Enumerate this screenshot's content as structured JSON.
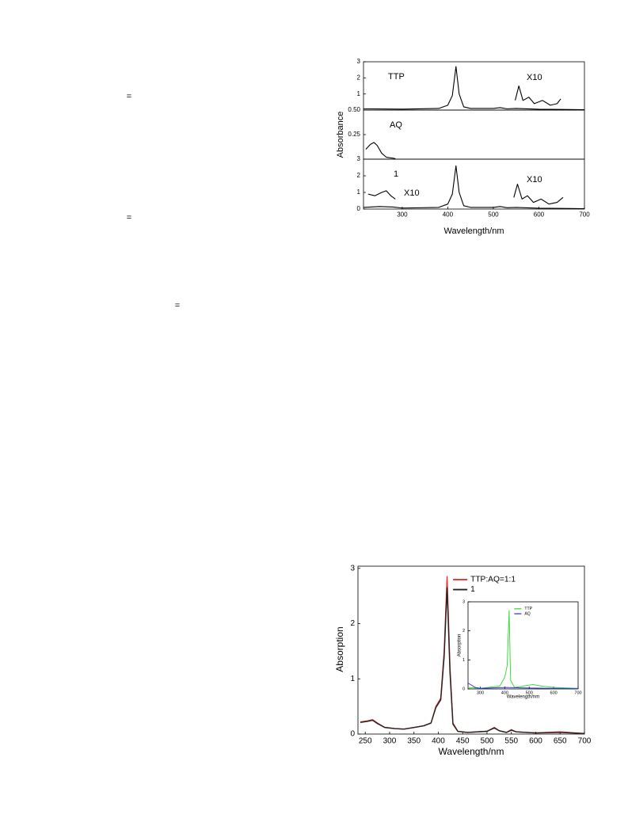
{
  "fragments": [
    "=",
    "=",
    "="
  ],
  "chart_data": [
    {
      "type": "line",
      "xlim": [
        215,
        700
      ],
      "ylim": [
        0,
        3
      ],
      "yticks": [
        1,
        2,
        3
      ],
      "annotations": [
        "TTP",
        "X10"
      ],
      "series": [
        {
          "color": "#000000",
          "x": [
            215,
            300,
            380,
            400,
            410,
            418,
            425,
            435,
            450,
            500,
            515,
            530,
            550,
            600,
            650,
            700
          ],
          "values": [
            0.08,
            0.06,
            0.1,
            0.3,
            0.9,
            2.7,
            1.0,
            0.2,
            0.1,
            0.1,
            0.15,
            0.08,
            0.1,
            0.05,
            0.04,
            0.02
          ]
        },
        {
          "color": "#000000",
          "x": [
            548,
            556,
            565,
            578,
            590,
            608,
            625,
            640,
            648
          ],
          "values": [
            0.6,
            1.5,
            0.6,
            0.8,
            0.4,
            0.6,
            0.3,
            0.4,
            0.7
          ]
        }
      ]
    },
    {
      "type": "line",
      "xlim": [
        215,
        700
      ],
      "ylim": [
        0,
        0.5
      ],
      "yticks": [
        0.25,
        {
          "value": 0.5,
          "label": "0.50"
        }
      ],
      "ylabel": "Absorbance",
      "annotations": [
        "AQ"
      ],
      "series": [
        {
          "color": "#000000",
          "x": [
            220,
            230,
            238,
            245,
            255,
            265,
            280,
            285
          ],
          "values": [
            0.1,
            0.15,
            0.17,
            0.14,
            0.06,
            0.02,
            0.01,
            0.005
          ]
        }
      ]
    },
    {
      "type": "line",
      "xlim": [
        215,
        700
      ],
      "ylim": [
        0,
        3
      ],
      "yticks": [
        0,
        1,
        2,
        3
      ],
      "xticks": [
        300,
        400,
        500,
        600,
        700
      ],
      "xlabel": "Wavelength/nm",
      "annotations": [
        "1",
        "X10",
        "X10"
      ],
      "series": [
        {
          "color": "#000000",
          "x": [
            215,
            250,
            280,
            300,
            380,
            400,
            410,
            418,
            425,
            435,
            450,
            500,
            515,
            530,
            550,
            600,
            650,
            700
          ],
          "values": [
            0.1,
            0.15,
            0.12,
            0.06,
            0.1,
            0.3,
            0.9,
            2.6,
            1.0,
            0.2,
            0.1,
            0.1,
            0.15,
            0.08,
            0.1,
            0.05,
            0.04,
            0.02
          ]
        },
        {
          "color": "#000000",
          "x": [
            225,
            240,
            255,
            265,
            275,
            285
          ],
          "values": [
            0.9,
            0.8,
            1.0,
            1.1,
            0.8,
            0.6
          ]
        },
        {
          "color": "#000000",
          "x": [
            545,
            553,
            563,
            575,
            588,
            605,
            622,
            640,
            653
          ],
          "values": [
            0.7,
            1.5,
            0.6,
            0.8,
            0.4,
            0.6,
            0.3,
            0.4,
            0.7
          ]
        }
      ]
    },
    {
      "type": "line",
      "xlim": [
        235,
        700
      ],
      "ylim": [
        0,
        3.04
      ],
      "yticks": [
        0,
        1,
        2,
        3
      ],
      "xticks": [
        250,
        300,
        350,
        400,
        450,
        500,
        550,
        600,
        650,
        700
      ],
      "xlabel": "Wavelength/nm",
      "ylabel": "Absorption",
      "legend": "upper right",
      "series": [
        {
          "name": "TTP:AQ=1:1",
          "color": "#e8302c",
          "x": [
            240,
            255,
            265,
            275,
            290,
            310,
            330,
            350,
            370,
            385,
            395,
            405,
            412,
            418,
            424,
            430,
            440,
            460,
            500,
            515,
            525,
            540,
            550,
            560,
            600,
            650,
            700
          ],
          "values": [
            0.22,
            0.24,
            0.26,
            0.2,
            0.12,
            0.1,
            0.09,
            0.12,
            0.15,
            0.2,
            0.5,
            0.65,
            1.5,
            2.85,
            1.2,
            0.2,
            0.05,
            0.03,
            0.05,
            0.12,
            0.06,
            0.03,
            0.08,
            0.04,
            0.02,
            0.04,
            0.01
          ]
        },
        {
          "name": "1",
          "color": "#222222",
          "x": [
            240,
            255,
            265,
            275,
            290,
            310,
            330,
            350,
            370,
            385,
            395,
            405,
            412,
            418,
            424,
            430,
            440,
            460,
            500,
            515,
            525,
            540,
            550,
            560,
            600,
            650,
            700
          ],
          "values": [
            0.21,
            0.23,
            0.25,
            0.19,
            0.12,
            0.1,
            0.09,
            0.12,
            0.15,
            0.2,
            0.48,
            0.62,
            1.4,
            2.65,
            1.1,
            0.18,
            0.05,
            0.03,
            0.05,
            0.11,
            0.06,
            0.03,
            0.07,
            0.04,
            0.02,
            0.03,
            0.01
          ]
        }
      ],
      "inset": {
        "type": "line",
        "xlim": [
          250,
          700
        ],
        "ylim": [
          0,
          3
        ],
        "yticks": [
          0,
          1,
          2,
          3
        ],
        "xticks": [
          300,
          400,
          500,
          600,
          700
        ],
        "xlabel": "Wavelength/nm",
        "ylabel": "Absorption",
        "legend": "upper right",
        "series": [
          {
            "name": "TTP",
            "color": "#3ddc3d",
            "x": [
              250,
              300,
              380,
              400,
              410,
              418,
              424,
              440,
              515,
              550,
              600,
              700
            ],
            "values": [
              0.05,
              0.02,
              0.1,
              0.4,
              0.8,
              2.7,
              0.3,
              0.05,
              0.15,
              0.1,
              0.05,
              0.02
            ]
          },
          {
            "name": "AQ",
            "color": "#3a3adc",
            "x": [
              250,
              260,
              280,
              300,
              400,
              500,
              700
            ],
            "values": [
              0.2,
              0.15,
              0.05,
              0.02,
              0.05,
              0.03,
              0.01
            ]
          }
        ]
      }
    }
  ]
}
